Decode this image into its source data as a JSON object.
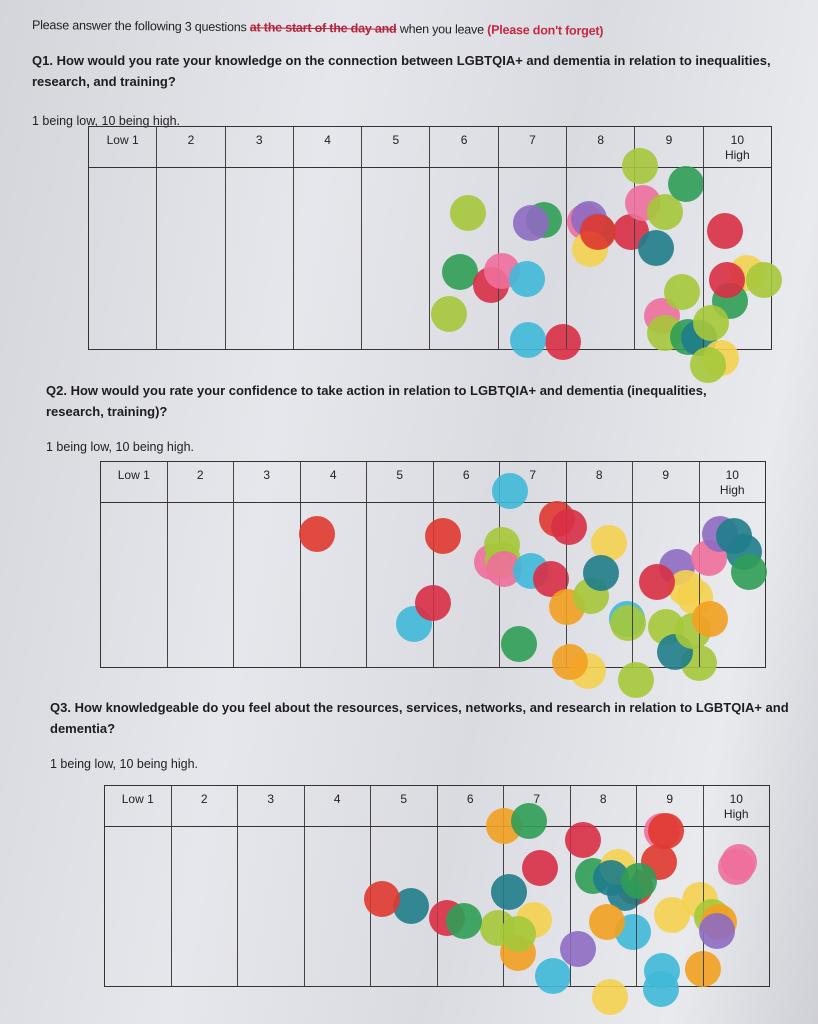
{
  "intro": {
    "text": "Please answer the following 3 questions",
    "struck": "at the start of the day and",
    "after": "when you leave",
    "note": "(Please don't forget)"
  },
  "questions": [
    {
      "title": "Q1. How would you rate your knowledge on the connection between LGBTQIA+ and dementia in relation to inequalities, research, and training?",
      "scale": "1 being low, 10 being high.",
      "columns": [
        "Low 1",
        "2",
        "3",
        "4",
        "5",
        "6",
        "7",
        "8",
        "9",
        "10 High"
      ],
      "votes": [
        0,
        0,
        0,
        0,
        0,
        4,
        6,
        6,
        10,
        8
      ]
    },
    {
      "title": "Q2. How would you rate your confidence to take action in relation to LGBTQIA+ and dementia (inequalities, research, training)?",
      "scale": "1 being low, 10 being high.",
      "columns": [
        "Low 1",
        "2",
        "3",
        "4",
        "5",
        "6",
        "7",
        "8",
        "9",
        "10 High"
      ],
      "votes": [
        0,
        0,
        0,
        1,
        1,
        3,
        8,
        9,
        9,
        6
      ]
    },
    {
      "title": "Q3. How knowledgeable do you feel about the resources, services, networks, and research in relation to LGBTQIA+ and dementia?",
      "scale": "1 being low, 10 being high.",
      "columns": [
        "Low 1",
        "2",
        "3",
        "4",
        "5",
        "6",
        "7",
        "8",
        "9",
        "10 High"
      ],
      "votes": [
        0,
        0,
        0,
        0,
        2,
        3,
        8,
        10,
        9,
        5
      ]
    }
  ],
  "dot_colors": [
    "#d92f45",
    "#3fb8d8",
    "#2f9d55",
    "#f2a020",
    "#a5c83a",
    "#8e6cc2",
    "#ee6f9c",
    "#f4d24f",
    "#e0392f",
    "#1f7d8a"
  ]
}
